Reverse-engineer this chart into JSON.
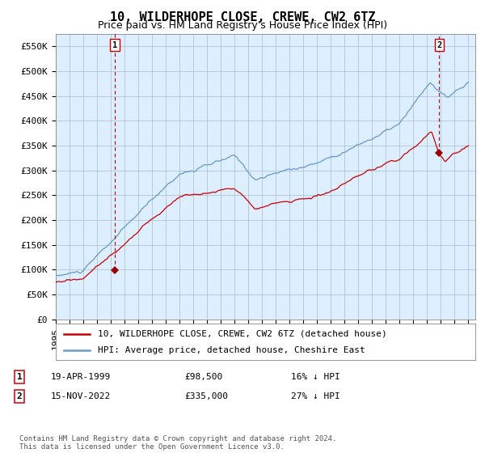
{
  "title": "10, WILDERHOPE CLOSE, CREWE, CW2 6TZ",
  "subtitle": "Price paid vs. HM Land Registry's House Price Index (HPI)",
  "ylabel_ticks": [
    "£0",
    "£50K",
    "£100K",
    "£150K",
    "£200K",
    "£250K",
    "£300K",
    "£350K",
    "£400K",
    "£450K",
    "£500K",
    "£550K"
  ],
  "ytick_values": [
    0,
    50000,
    100000,
    150000,
    200000,
    250000,
    300000,
    350000,
    400000,
    450000,
    500000,
    550000
  ],
  "ylim": [
    0,
    575000
  ],
  "xlim_start": 1995.0,
  "xlim_end": 2025.5,
  "sale1_x": 1999.3,
  "sale1_y": 98500,
  "sale1_label": "1",
  "sale2_x": 2022.88,
  "sale2_y": 335000,
  "sale2_label": "2",
  "red_line_color": "#cc0000",
  "blue_line_color": "#6699cc",
  "plot_bg_color": "#ddeeff",
  "marker_color": "#990000",
  "dashed_color": "#cc0000",
  "grid_color": "#aabbcc",
  "bg_color": "#ffffff",
  "legend_red_label": "10, WILDERHOPE CLOSE, CREWE, CW2 6TZ (detached house)",
  "legend_blue_label": "HPI: Average price, detached house, Cheshire East",
  "annotation1_date": "19-APR-1999",
  "annotation1_price": "£98,500",
  "annotation1_hpi": "16% ↓ HPI",
  "annotation2_date": "15-NOV-2022",
  "annotation2_price": "£335,000",
  "annotation2_hpi": "27% ↓ HPI",
  "footer": "Contains HM Land Registry data © Crown copyright and database right 2024.\nThis data is licensed under the Open Government Licence v3.0.",
  "title_fontsize": 11,
  "subtitle_fontsize": 9,
  "tick_fontsize": 8,
  "legend_fontsize": 8,
  "annotation_fontsize": 8,
  "footer_fontsize": 6.5
}
